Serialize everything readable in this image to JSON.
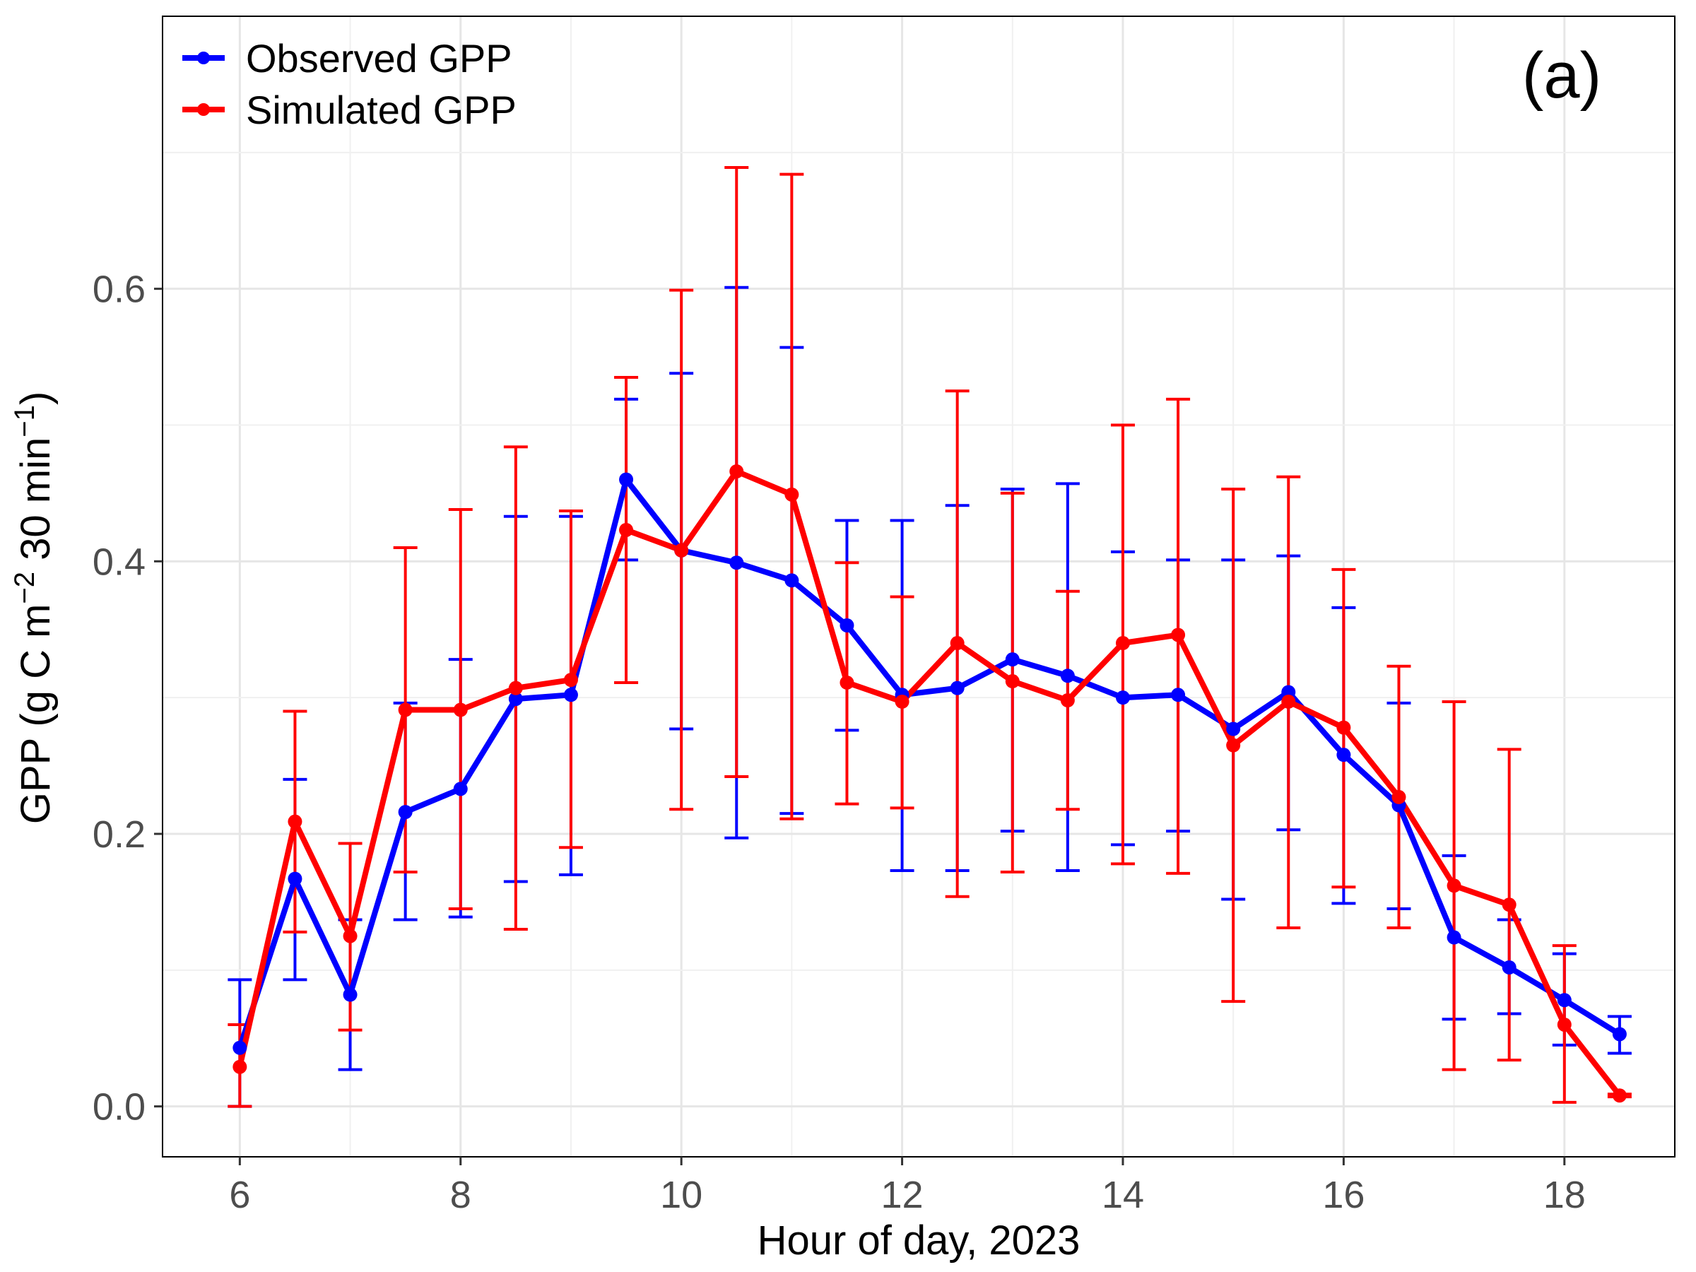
{
  "chart_data": {
    "type": "line",
    "panel_label": "(a)",
    "xlabel": "Hour of day, 2023",
    "ylabel": "GPP (g C m⁻² 30 min⁻¹)",
    "ylabel_parts": {
      "prefix": "GPP (g C m",
      "sup1": "−2",
      "middle": " 30 min",
      "sup2": "−1",
      "suffix": ")"
    },
    "xlim": [
      5.3,
      19.0
    ],
    "ylim": [
      -0.037,
      0.8
    ],
    "x_ticks": [
      6,
      8,
      10,
      12,
      14,
      16,
      18
    ],
    "x_tick_labels": [
      "6",
      "8",
      "10",
      "12",
      "14",
      "16",
      "18"
    ],
    "y_ticks": [
      0.0,
      0.2,
      0.4,
      0.6
    ],
    "y_tick_labels": [
      "0.0",
      "0.2",
      "0.4",
      "0.6"
    ],
    "grid": true,
    "legend_position": "top-left",
    "x": [
      6,
      6.5,
      7,
      7.5,
      8,
      8.5,
      9,
      9.5,
      10,
      10.5,
      11,
      11.5,
      12,
      12.5,
      13,
      13.5,
      14,
      14.5,
      15,
      15.5,
      16,
      16.5,
      17,
      17.5,
      18,
      18.5
    ],
    "series": [
      {
        "name": "Observed GPP",
        "color": "#0000ff",
        "values": [
          0.043,
          0.167,
          0.082,
          0.216,
          0.233,
          0.299,
          0.302,
          0.46,
          0.408,
          0.399,
          0.386,
          0.353,
          0.302,
          0.307,
          0.328,
          0.316,
          0.3,
          0.302,
          0.277,
          0.304,
          0.258,
          0.221,
          0.124,
          0.102,
          0.078,
          0.053
        ],
        "err_low": [
          0.0,
          0.093,
          0.027,
          0.137,
          0.139,
          0.165,
          0.17,
          0.401,
          0.277,
          0.197,
          0.215,
          0.276,
          0.173,
          0.173,
          0.202,
          0.173,
          0.192,
          0.202,
          0.152,
          0.203,
          0.149,
          0.145,
          0.064,
          0.068,
          0.045,
          0.039
        ],
        "err_high": [
          0.093,
          0.24,
          0.137,
          0.296,
          0.328,
          0.433,
          0.433,
          0.519,
          0.538,
          0.601,
          0.557,
          0.43,
          0.43,
          0.441,
          0.453,
          0.457,
          0.407,
          0.401,
          0.401,
          0.404,
          0.366,
          0.296,
          0.184,
          0.137,
          0.112,
          0.066
        ]
      },
      {
        "name": "Simulated GPP",
        "color": "#ff0000",
        "values": [
          0.029,
          0.209,
          0.125,
          0.291,
          0.291,
          0.307,
          0.313,
          0.423,
          0.408,
          0.466,
          0.449,
          0.311,
          0.297,
          0.34,
          0.312,
          0.298,
          0.34,
          0.346,
          0.265,
          0.297,
          0.278,
          0.227,
          0.162,
          0.148,
          0.06,
          0.008
        ],
        "err_low": [
          0.0,
          0.128,
          0.056,
          0.172,
          0.145,
          0.13,
          0.19,
          0.311,
          0.218,
          0.242,
          0.211,
          0.222,
          0.219,
          0.154,
          0.172,
          0.218,
          0.178,
          0.171,
          0.077,
          0.131,
          0.161,
          0.131,
          0.027,
          0.034,
          0.003,
          0.007
        ],
        "err_high": [
          0.06,
          0.29,
          0.193,
          0.41,
          0.438,
          0.484,
          0.437,
          0.535,
          0.599,
          0.689,
          0.684,
          0.399,
          0.374,
          0.525,
          0.45,
          0.378,
          0.5,
          0.519,
          0.453,
          0.462,
          0.394,
          0.323,
          0.297,
          0.262,
          0.118,
          0.009
        ]
      }
    ]
  }
}
